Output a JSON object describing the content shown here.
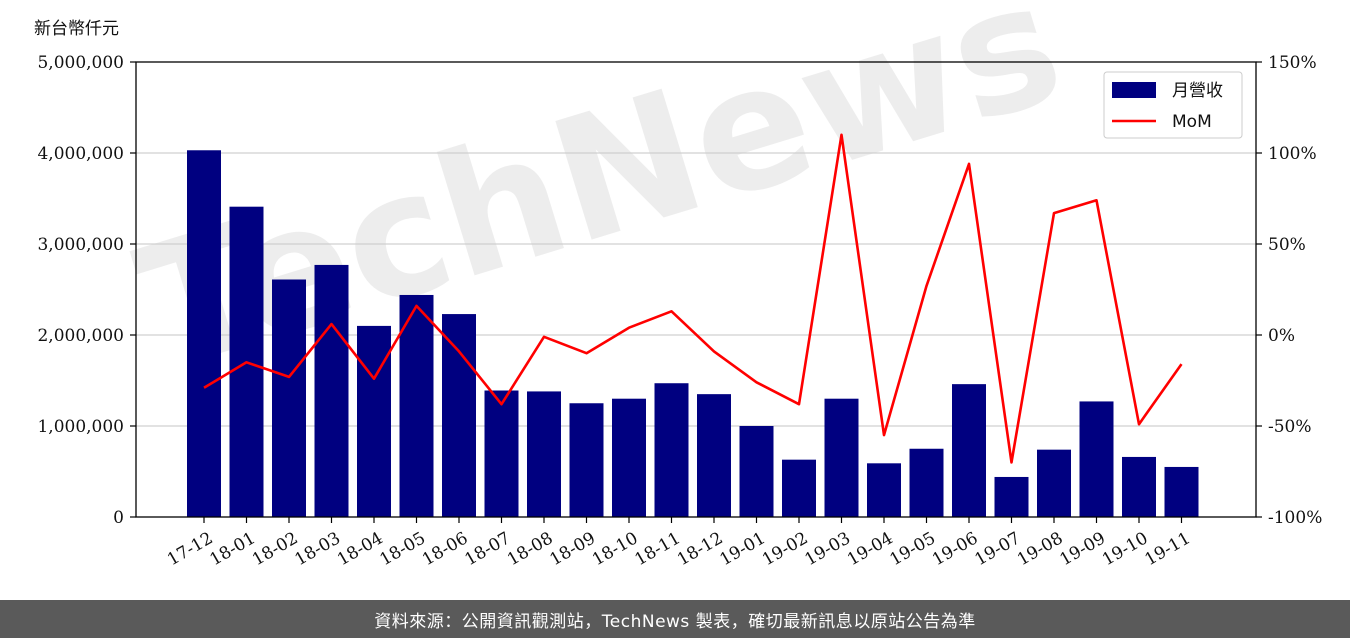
{
  "watermark": "TechNews",
  "footer": "資料來源：公開資訊觀測站，TechNews 製表，確切最新訊息以原站公告為準",
  "chart_data": {
    "type": "bar",
    "unit_label": "新台幣仟元",
    "categories": [
      "17-12",
      "18-01",
      "18-02",
      "18-03",
      "18-04",
      "18-05",
      "18-06",
      "18-07",
      "18-08",
      "18-09",
      "18-10",
      "18-11",
      "18-12",
      "19-01",
      "19-02",
      "19-03",
      "19-04",
      "19-05",
      "19-06",
      "19-07",
      "19-08",
      "19-09",
      "19-10",
      "19-11"
    ],
    "series": [
      {
        "name": "月營收",
        "type": "bar",
        "axis": "left",
        "color": "#000080",
        "values": [
          4030000,
          3410000,
          2610000,
          2770000,
          2100000,
          2440000,
          2230000,
          1390000,
          1380000,
          1250000,
          1300000,
          1470000,
          1350000,
          1000000,
          630000,
          1300000,
          590000,
          750000,
          1460000,
          440000,
          740000,
          1270000,
          660000,
          550000
        ]
      },
      {
        "name": "MoM",
        "type": "line",
        "axis": "right",
        "color": "#ff0000",
        "values": [
          -29,
          -15,
          -23,
          6,
          -24,
          16,
          -9,
          -38,
          -1,
          -10,
          4,
          13,
          -9,
          -26,
          -38,
          110,
          -55,
          27,
          94,
          -70,
          67,
          74,
          -49,
          -16
        ]
      }
    ],
    "left_axis": {
      "min": 0,
      "max": 5000000,
      "ticks": [
        "0",
        "1,000,000",
        "2,000,000",
        "3,000,000",
        "4,000,000",
        "5,000,000"
      ]
    },
    "right_axis": {
      "min": -100,
      "max": 150,
      "ticks": [
        "-100%",
        "-50%",
        "0%",
        "50%",
        "100%",
        "150%"
      ]
    },
    "grid": "horizontal",
    "legend_position": "top-right"
  }
}
